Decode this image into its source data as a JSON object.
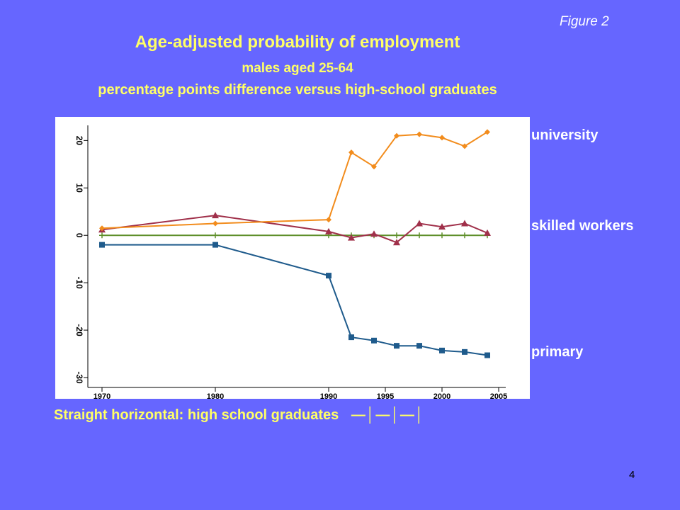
{
  "slide": {
    "figure_label": "Figure 2",
    "title": "Age-adjusted probability of employment",
    "subtitle": "males aged 25-64",
    "subtitle2": "percentage points difference versus high-school graduates",
    "label_university": "university",
    "label_skilled": "skilled workers",
    "label_primary": "primary",
    "bottom_note": "Straight horizontal:  high school graduates",
    "bottom_marks": "—│—│—│",
    "page_number": "4"
  },
  "colors": {
    "background": "#6666ff",
    "university": "#f28c1c",
    "skilled": "#a0304a",
    "high_school": "#5f8f2a",
    "primary": "#1f5b8c"
  },
  "chart_data": {
    "type": "line",
    "xlim": [
      1970,
      2005
    ],
    "ylim": [
      -30,
      22
    ],
    "x_ticks": [
      1970,
      1980,
      1990,
      1995,
      2000,
      2005
    ],
    "y_ticks": [
      -30,
      -20,
      -10,
      0,
      10,
      20
    ],
    "x_tick_labels": [
      "1970",
      "1980",
      "1990",
      "1995",
      "2000",
      "2005"
    ],
    "y_tick_labels": [
      "-30",
      "-20",
      "-10",
      "0",
      "10",
      "20"
    ],
    "legend": "right",
    "series": [
      {
        "name": "university",
        "color_key": "university",
        "marker": "diamond",
        "points": [
          [
            1970,
            1.5
          ],
          [
            1980,
            2.5
          ],
          [
            1990,
            3.3
          ],
          [
            1992,
            17.5
          ],
          [
            1994,
            14.5
          ],
          [
            1996,
            21
          ],
          [
            1998,
            21.3
          ],
          [
            2000,
            20.6
          ],
          [
            2002,
            18.8
          ],
          [
            2004,
            21.8
          ]
        ]
      },
      {
        "name": "skilled workers",
        "color_key": "skilled",
        "marker": "triangle",
        "points": [
          [
            1970,
            1.2
          ],
          [
            1980,
            4.2
          ],
          [
            1990,
            0.8
          ],
          [
            1992,
            -0.5
          ],
          [
            1994,
            0.3
          ],
          [
            1996,
            -1.5
          ],
          [
            1998,
            2.5
          ],
          [
            2000,
            1.8
          ],
          [
            2002,
            2.5
          ],
          [
            2004,
            0.5
          ]
        ]
      },
      {
        "name": "high school graduates",
        "color_key": "high_school",
        "marker": "plus",
        "points": [
          [
            1970,
            0
          ],
          [
            1980,
            0
          ],
          [
            1990,
            0
          ],
          [
            1992,
            0
          ],
          [
            1994,
            0
          ],
          [
            1996,
            0
          ],
          [
            1998,
            0
          ],
          [
            2000,
            0
          ],
          [
            2002,
            0
          ],
          [
            2004,
            0
          ]
        ]
      },
      {
        "name": "primary",
        "color_key": "primary",
        "marker": "square",
        "points": [
          [
            1970,
            -2
          ],
          [
            1980,
            -2
          ],
          [
            1990,
            -8.5
          ],
          [
            1992,
            -21.5
          ],
          [
            1994,
            -22.2
          ],
          [
            1996,
            -23.3
          ],
          [
            1998,
            -23.3
          ],
          [
            2000,
            -24.3
          ],
          [
            2002,
            -24.6
          ],
          [
            2004,
            -25.3
          ]
        ]
      }
    ]
  }
}
